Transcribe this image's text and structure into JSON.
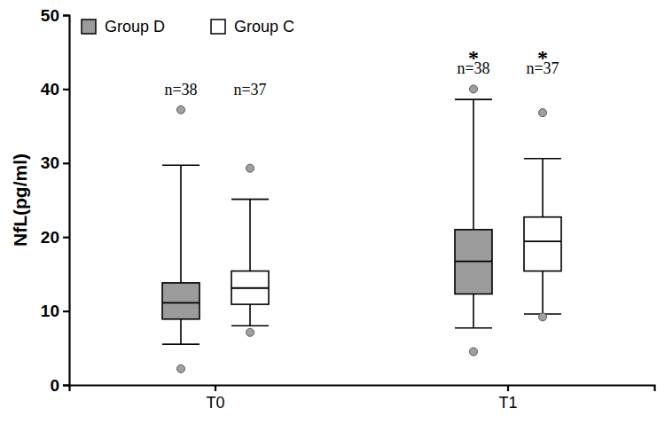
{
  "chart_data": {
    "type": "box",
    "y_label": "NfL(pg/ml)",
    "categories": [
      "T0",
      "T1"
    ],
    "ylim": [
      0,
      50
    ],
    "yticks": [
      0,
      10,
      20,
      30,
      40,
      50
    ],
    "legend": "top-left",
    "grid": false,
    "series": [
      {
        "name": "Group D",
        "color": "#9b9b9b",
        "values": [
          {
            "whisker_low": 5.5,
            "q1": 8.9,
            "median": 11.1,
            "q3": 13.8,
            "whisker_high": 29.7,
            "outliers": [
              37.2,
              2.2
            ]
          },
          {
            "whisker_low": 7.7,
            "q1": 12.3,
            "median": 16.7,
            "q3": 21.0,
            "whisker_high": 38.6,
            "outliers": [
              40.0,
              4.5
            ]
          }
        ]
      },
      {
        "name": "Group C",
        "color": "#ffffff",
        "values": [
          {
            "whisker_low": 8.0,
            "q1": 10.9,
            "median": 13.1,
            "q3": 15.4,
            "whisker_high": 25.1,
            "outliers": [
              29.3,
              7.1
            ]
          },
          {
            "whisker_low": 9.6,
            "q1": 15.4,
            "median": 19.4,
            "q3": 22.7,
            "whisker_high": 30.6,
            "outliers": [
              36.8,
              9.2
            ]
          }
        ]
      }
    ],
    "annotations": [
      {
        "text": "n=38",
        "series": 0,
        "category": 0
      },
      {
        "text": "n=37",
        "series": 1,
        "category": 0
      },
      {
        "text": "n=38",
        "series": 0,
        "category": 1
      },
      {
        "text": "*",
        "series": 0,
        "category": 1
      },
      {
        "text": "n=37",
        "series": 1,
        "category": 1
      },
      {
        "text": "*",
        "series": 1,
        "category": 1
      }
    ]
  }
}
